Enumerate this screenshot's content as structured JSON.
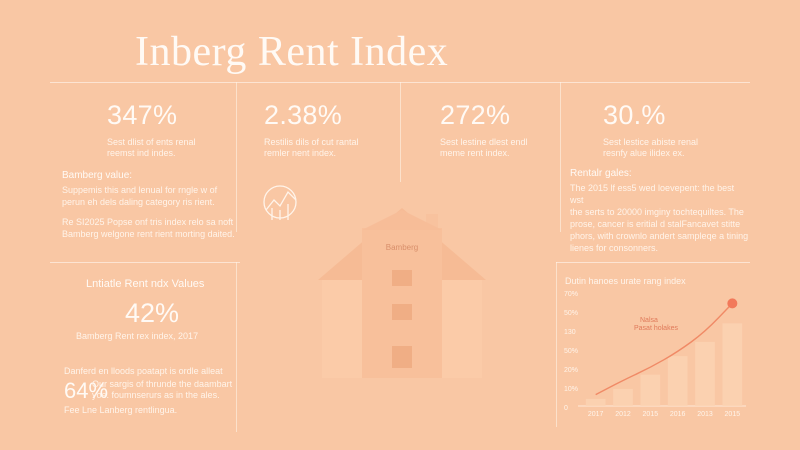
{
  "title": "Inberg Rent Index",
  "stats": [
    {
      "value": "347%",
      "caption": "Sest dlist of ents renal reemst ind indes."
    },
    {
      "value": "2.38%",
      "caption": "Restilis dils of cut rantal remler nent index."
    },
    {
      "value": "272%",
      "caption": "Sest lestine dlest endl meme rent index."
    },
    {
      "value": "30.%",
      "caption": "Sest lestice abiste renal resnfy alue ilidex ex."
    }
  ],
  "left_block": {
    "heading": "Bamberg value:",
    "line1": "Suppemis this and lenual for rngle w of",
    "line2": "perun eh dels daling category ris rient.",
    "line3": "Re SI2025 Popse onf tris index relo sa noft",
    "line4": "Bamberg welgone rent rient morting daited."
  },
  "right_block": {
    "heading": "Rentalr gales:",
    "line1": "The 2015 lf ess5 wed loevepent: the best wst",
    "line2": "the serts to 20000 imginy tochtequiltes. The",
    "line3": "prose, cancer is eritial d stalFancavet stitte",
    "line4": "phors, with crownlo andert sampleqe a tining",
    "line5": "lienes for consonners."
  },
  "house_label": "Bamberg",
  "lower_left": {
    "heading": "Lntiatle Rent ndx Values",
    "value": "42%",
    "caption": "Bamberg Rent rex index, 2017",
    "line1": "Danferd en lloods poatapt is ordle alleat",
    "pct": "64%",
    "line2": "Our sargis of thrunde the daambart",
    "line3": "yoe. foumnserurs as in the ales.",
    "line4": "Fee Lne Lanberg rentlingua."
  },
  "chart_data": {
    "type": "bar",
    "title": "Dutin hanoes urate rang index",
    "categories": [
      "2017",
      "2012",
      "2015",
      "2016",
      "2013",
      "2015"
    ],
    "values": [
      5,
      12,
      22,
      35,
      45,
      58
    ],
    "line_values": [
      8,
      18,
      27,
      38,
      52,
      72
    ],
    "yticks": [
      "70%",
      "50%",
      "130",
      "50%",
      "20%",
      "10%",
      "0"
    ],
    "annotation": {
      "line1": "Nalsa",
      "line2": "Pasat holakes"
    },
    "colors": {
      "bar": "#fbd2b3",
      "line": "#f08a66",
      "marker": "#f2795a"
    }
  }
}
